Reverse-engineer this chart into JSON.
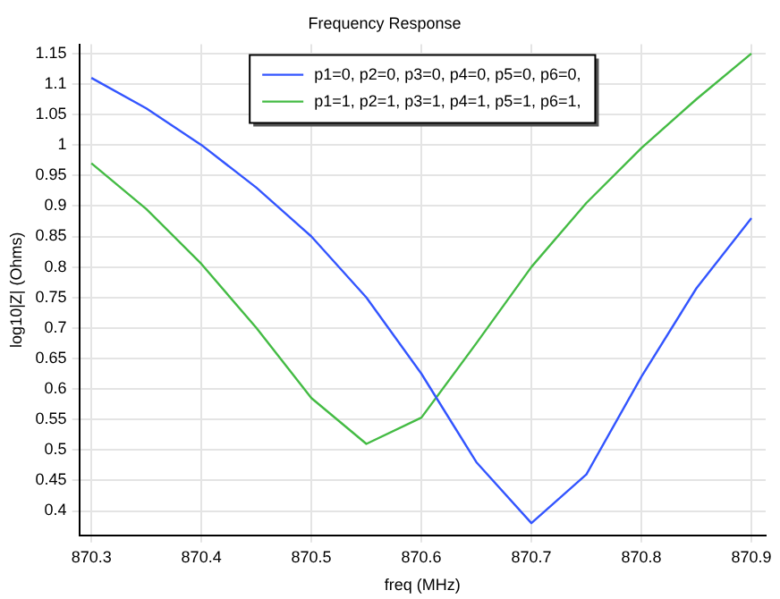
{
  "chart_data": {
    "type": "line",
    "title": "Frequency Response",
    "xlabel": "freq (MHz)",
    "ylabel": "log10|Z| (Ohms)",
    "x": [
      870.3,
      870.35,
      870.4,
      870.45,
      870.5,
      870.55,
      870.6,
      870.65,
      870.7,
      870.75,
      870.8,
      870.85,
      870.9
    ],
    "series": [
      {
        "name": "p1=0, p2=0, p3=0, p4=0, p5=0, p6=0,",
        "color": "#3355ff",
        "values": [
          1.11,
          1.06,
          1.0,
          0.93,
          0.85,
          0.75,
          0.625,
          0.48,
          0.38,
          0.46,
          0.62,
          0.765,
          0.88
        ]
      },
      {
        "name": "p1=1, p2=1, p3=1, p4=1, p5=1, p6=1,",
        "color": "#44bb44",
        "values": [
          0.97,
          0.895,
          0.805,
          0.7,
          0.585,
          0.51,
          0.553,
          0.675,
          0.8,
          0.905,
          0.995,
          1.075,
          1.15
        ]
      }
    ],
    "xlim": [
      870.289,
      870.913
    ],
    "xticks": [
      870.3,
      870.4,
      870.5,
      870.6,
      870.7,
      870.8,
      870.9
    ],
    "ylim": [
      0.36,
      1.165
    ],
    "yticks": [
      0.4,
      0.45,
      0.5,
      0.55,
      0.6,
      0.65,
      0.7,
      0.75,
      0.8,
      0.85,
      0.9,
      0.95,
      1,
      1.05,
      1.1,
      1.15
    ],
    "grid": true,
    "legend": "top",
    "marker": "none",
    "line_style": "solid"
  }
}
